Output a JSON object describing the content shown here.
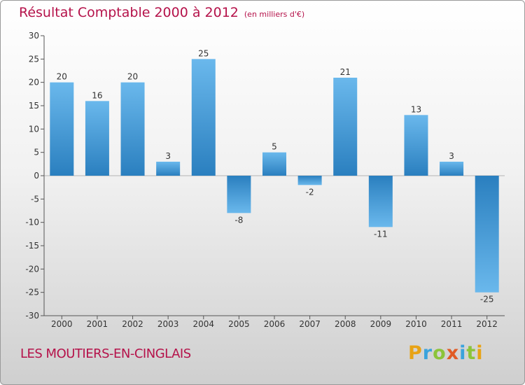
{
  "header": {
    "title": "Résultat Comptable 2000 à 2012",
    "subtitle": "(en milliers d'€)"
  },
  "footer": {
    "commune": "LES MOUTIERS-EN-CINGLAIS",
    "logo": {
      "letters": [
        "P",
        "r",
        "o",
        "x",
        "i",
        "t",
        "i"
      ]
    }
  },
  "colors": {
    "title": "#b5124a",
    "bar_dark": "#2a7fbf",
    "bar_light": "#6ab8ec",
    "logo_letters": [
      "#e8a315",
      "#3aa3dd",
      "#8cc43a",
      "#e15b24",
      "#3aa3dd",
      "#8cc43a",
      "#e8a315"
    ]
  },
  "chart_data": {
    "type": "bar",
    "title": "Résultat Comptable 2000 à 2012",
    "subtitle": "(en milliers d'€)",
    "xlabel": "",
    "ylabel": "",
    "categories": [
      "2000",
      "2001",
      "2002",
      "2003",
      "2004",
      "2005",
      "2006",
      "2007",
      "2008",
      "2009",
      "2010",
      "2011",
      "2012"
    ],
    "values": [
      20,
      16,
      20,
      3,
      25,
      -8,
      5,
      -2,
      21,
      -11,
      13,
      3,
      -25
    ],
    "ylim": [
      -30,
      30
    ],
    "yticks": [
      30,
      25,
      20,
      15,
      10,
      5,
      0,
      -5,
      -10,
      -15,
      -20,
      -25,
      -30
    ],
    "grid": false,
    "legend": "none"
  }
}
